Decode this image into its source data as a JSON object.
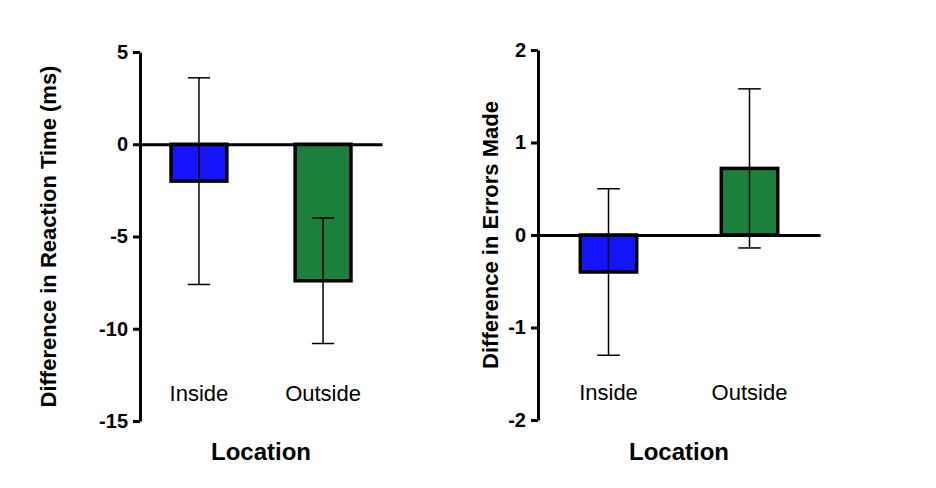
{
  "chart_data": [
    {
      "type": "bar",
      "x_label": "Location",
      "y_label": "Difference in Reaction Time (ms)",
      "categories": [
        "Inside",
        "Outside"
      ],
      "values": [
        -2.0,
        -7.4
      ],
      "errors": [
        5.6,
        3.4
      ],
      "colors": [
        "#1414ff",
        "#1d7f3c"
      ],
      "ylim": [
        -15,
        5
      ],
      "yticks": [
        -15,
        -10,
        -5,
        0,
        5
      ],
      "grid": false
    },
    {
      "type": "bar",
      "x_label": "Location",
      "y_label": "Difference in Errors Made",
      "categories": [
        "Inside",
        "Outside"
      ],
      "values": [
        -0.4,
        0.72
      ],
      "errors": [
        0.9,
        0.86
      ],
      "colors": [
        "#1414ff",
        "#1d7f3c"
      ],
      "ylim": [
        -2,
        2
      ],
      "yticks": [
        -2,
        -1,
        0,
        1,
        2
      ],
      "grid": false
    }
  ]
}
